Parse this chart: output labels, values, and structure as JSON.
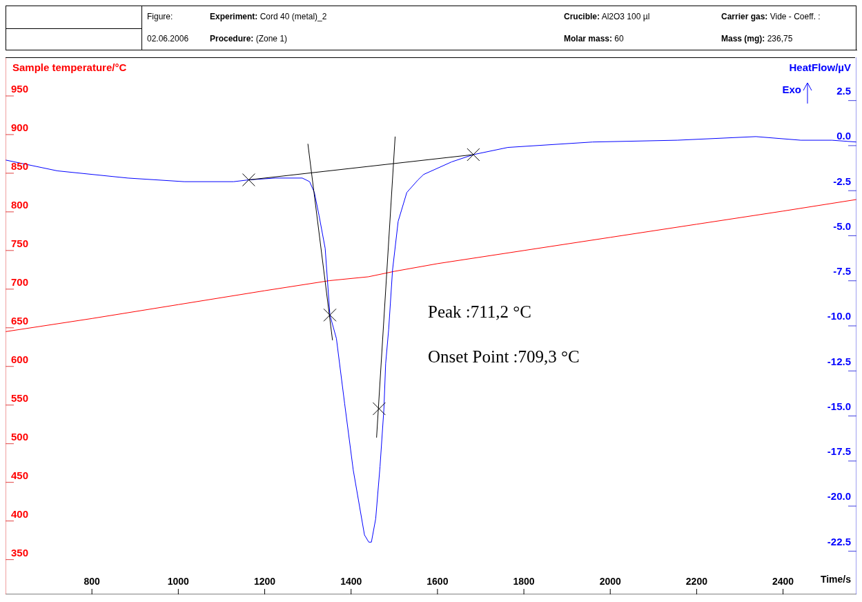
{
  "chart_data": {
    "type": "line",
    "xlabel": "Time/s",
    "ylabel": "Sample temperature/°C",
    "y2label": "HeatFlow/µV",
    "annotations": [
      "Figure:",
      "Experiment: Cord 40 (metal)_2",
      "Crucible: Al2O3 100 µl",
      "Carrier gas: Vide - Coeff. :",
      "02.06.2006",
      "Procedure: (Zone 1)",
      "Molar mass: 60",
      "Mass (mg): 236,75",
      "Exo",
      "Peak :711,2 °C",
      "Onset Point :709,3 °C"
    ],
    "xlim": [
      600,
      2570
    ],
    "xticks": [
      800,
      1000,
      1200,
      1400,
      1600,
      1800,
      2000,
      2200,
      2400
    ],
    "ylim": [
      305,
      1000
    ],
    "yticks": [
      350,
      400,
      450,
      500,
      550,
      600,
      650,
      700,
      750,
      800,
      850,
      900,
      950
    ],
    "y2lim": [
      -24.9,
      4.9
    ],
    "y2ticks": [
      {
        "value": -22.5,
        "label": "-22.5"
      },
      {
        "value": -20,
        "label": "-20.0"
      },
      -17.5,
      {
        "value": -15,
        "label": "-15.0"
      },
      -12.5,
      {
        "value": -10,
        "label": "-10.0"
      },
      -7.5,
      {
        "value": -5,
        "label": "-5.0"
      },
      -2.5,
      {
        "value": 0,
        "label": "0.0"
      },
      2.5
    ],
    "grid": false,
    "legend": false,
    "marker": "none",
    "line_style": "solid",
    "series": [
      {
        "color": "#ff0000",
        "x": [
          600,
          800,
          1000,
          1200,
          1350,
          1440,
          1500,
          1600,
          1800,
          2000,
          2200,
          2400,
          2570
        ],
        "values": [
          645,
          662,
          680,
          698,
          711,
          716,
          723,
          733,
          750,
          767,
          784,
          801,
          816
        ]
      },
      {
        "color": "#0000ff",
        "axis": "y2",
        "x": [
          600,
          720,
          883,
          1014,
          1128,
          1163,
          1225,
          1287,
          1304,
          1315,
          1326,
          1340,
          1351,
          1366,
          1385,
          1405,
          1431,
          1441,
          1447,
          1457,
          1467,
          1476,
          1480,
          1487,
          1496,
          1509,
          1529,
          1555,
          1568,
          1633,
          1683,
          1763,
          1959,
          2155,
          2337,
          2441,
          2513,
          2570
        ],
        "values": [
          -0.8,
          -1.4,
          -1.8,
          -2.0,
          -2.0,
          -1.9,
          -1.8,
          -1.8,
          -2.0,
          -2.6,
          -3.9,
          -5.7,
          -9.4,
          -10.7,
          -14.3,
          -18.0,
          -21.6,
          -22.0,
          -22.0,
          -20.7,
          -17.8,
          -14.6,
          -12.1,
          -10.2,
          -6.9,
          -4.2,
          -2.6,
          -1.9,
          -1.6,
          -0.9,
          -0.5,
          -0.1,
          0.2,
          0.3,
          0.5,
          0.3,
          0.3,
          0.2
        ]
      },
      {
        "color": "#000000",
        "axis": "y2",
        "x": [
          1163,
          1683
        ],
        "values": [
          -1.9,
          -0.5
        ]
      },
      {
        "color": "#000000",
        "axis": "y2",
        "x": [
          1300,
          1357
        ],
        "values": [
          0.1,
          -10.8
        ]
      },
      {
        "color": "#000000",
        "axis": "y2",
        "x": [
          1502,
          1459
        ],
        "values": [
          0.5,
          -16.2
        ]
      },
      {
        "type": "scatter",
        "marker": "cross",
        "color": "#000000",
        "axis": "y2",
        "x": [
          1163,
          1683,
          1351,
          1465
        ],
        "values": [
          -1.9,
          -0.5,
          -9.4,
          -14.6
        ]
      }
    ]
  }
}
